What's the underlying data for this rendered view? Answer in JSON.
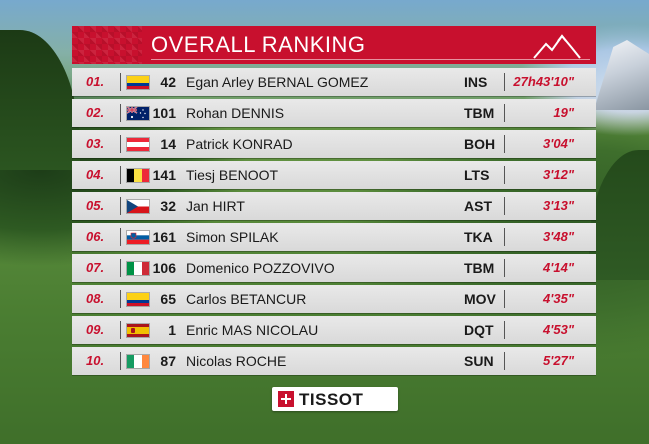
{
  "header": {
    "title": "OVERALL RANKING",
    "accent_color": "#c8102e",
    "icon": "mountain-icon"
  },
  "rows": [
    {
      "pos": "01.",
      "flag": "colombia",
      "bib": "42",
      "name": "Egan Arley BERNAL GOMEZ",
      "team": "INS",
      "time": "27h43'10\""
    },
    {
      "pos": "02.",
      "flag": "australia",
      "bib": "101",
      "name": "Rohan DENNIS",
      "team": "TBM",
      "time": "19\""
    },
    {
      "pos": "03.",
      "flag": "austria",
      "bib": "14",
      "name": "Patrick KONRAD",
      "team": "BOH",
      "time": "3'04\""
    },
    {
      "pos": "04.",
      "flag": "belgium",
      "bib": "141",
      "name": "Tiesj BENOOT",
      "team": "LTS",
      "time": "3'12\""
    },
    {
      "pos": "05.",
      "flag": "czech-republic",
      "bib": "32",
      "name": "Jan HIRT",
      "team": "AST",
      "time": "3'13\""
    },
    {
      "pos": "06.",
      "flag": "slovenia",
      "bib": "161",
      "name": "Simon SPILAK",
      "team": "TKA",
      "time": "3'48\""
    },
    {
      "pos": "07.",
      "flag": "italy",
      "bib": "106",
      "name": "Domenico POZZOVIVO",
      "team": "TBM",
      "time": "4'14\""
    },
    {
      "pos": "08.",
      "flag": "colombia",
      "bib": "65",
      "name": "Carlos BETANCUR",
      "team": "MOV",
      "time": "4'35\""
    },
    {
      "pos": "09.",
      "flag": "spain",
      "bib": "1",
      "name": "Enric MAS NICOLAU",
      "team": "DQT",
      "time": "4'53\""
    },
    {
      "pos": "10.",
      "flag": "ireland",
      "bib": "87",
      "name": "Nicolas ROCHE",
      "team": "SUN",
      "time": "5'27\""
    }
  ],
  "sponsor": {
    "label": "TISSOT",
    "icon": "swiss-cross-icon"
  }
}
